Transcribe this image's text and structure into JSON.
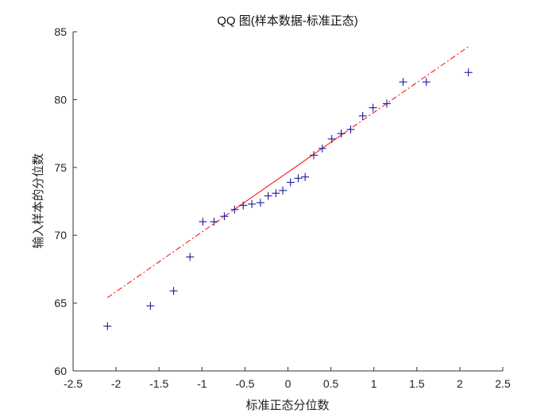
{
  "chart_data": {
    "type": "scatter",
    "title": "QQ 图(样本数据-标准正态)",
    "xlabel": "标准正态分位数",
    "ylabel": "输入样本的分位数",
    "xlim": [
      -2.5,
      2.5
    ],
    "ylim": [
      60,
      85
    ],
    "xticks": [
      -2.5,
      -2,
      -1.5,
      -1,
      -0.5,
      0,
      0.5,
      1,
      1.5,
      2,
      2.5
    ],
    "xtick_labels": [
      "-2.5",
      "-2",
      "-1.5",
      "-1",
      "-0.5",
      "0",
      "0.5",
      "1",
      "1.5",
      "2",
      "2.5"
    ],
    "yticks": [
      60,
      65,
      70,
      75,
      80,
      85
    ],
    "ytick_labels": [
      "60",
      "65",
      "70",
      "75",
      "80",
      "85"
    ],
    "grid": false,
    "series": [
      {
        "marker": "+",
        "color": "#1a1a9c",
        "x": [
          -2.1,
          -1.6,
          -1.33,
          -1.14,
          -0.99,
          -0.86,
          -0.74,
          -0.62,
          -0.52,
          -0.42,
          -0.32,
          -0.23,
          -0.14,
          -0.06,
          0.03,
          0.12,
          0.2,
          0.3,
          0.4,
          0.51,
          0.62,
          0.73,
          0.87,
          0.99,
          1.15,
          1.34,
          1.61,
          2.1
        ],
        "y": [
          63.3,
          64.8,
          65.9,
          68.4,
          71.0,
          71.0,
          71.4,
          71.9,
          72.2,
          72.3,
          72.4,
          72.9,
          73.1,
          73.3,
          73.9,
          74.2,
          74.3,
          75.9,
          76.4,
          77.1,
          77.5,
          77.8,
          78.8,
          79.4,
          79.7,
          81.3,
          81.3,
          82.0
        ]
      }
    ],
    "reference_line": {
      "style": "dash-dot",
      "color": "#ff0000",
      "solid_segment": [
        -0.64,
        0.64
      ],
      "x": [
        -2.1,
        2.1
      ],
      "y": [
        65.4,
        83.9
      ]
    }
  }
}
